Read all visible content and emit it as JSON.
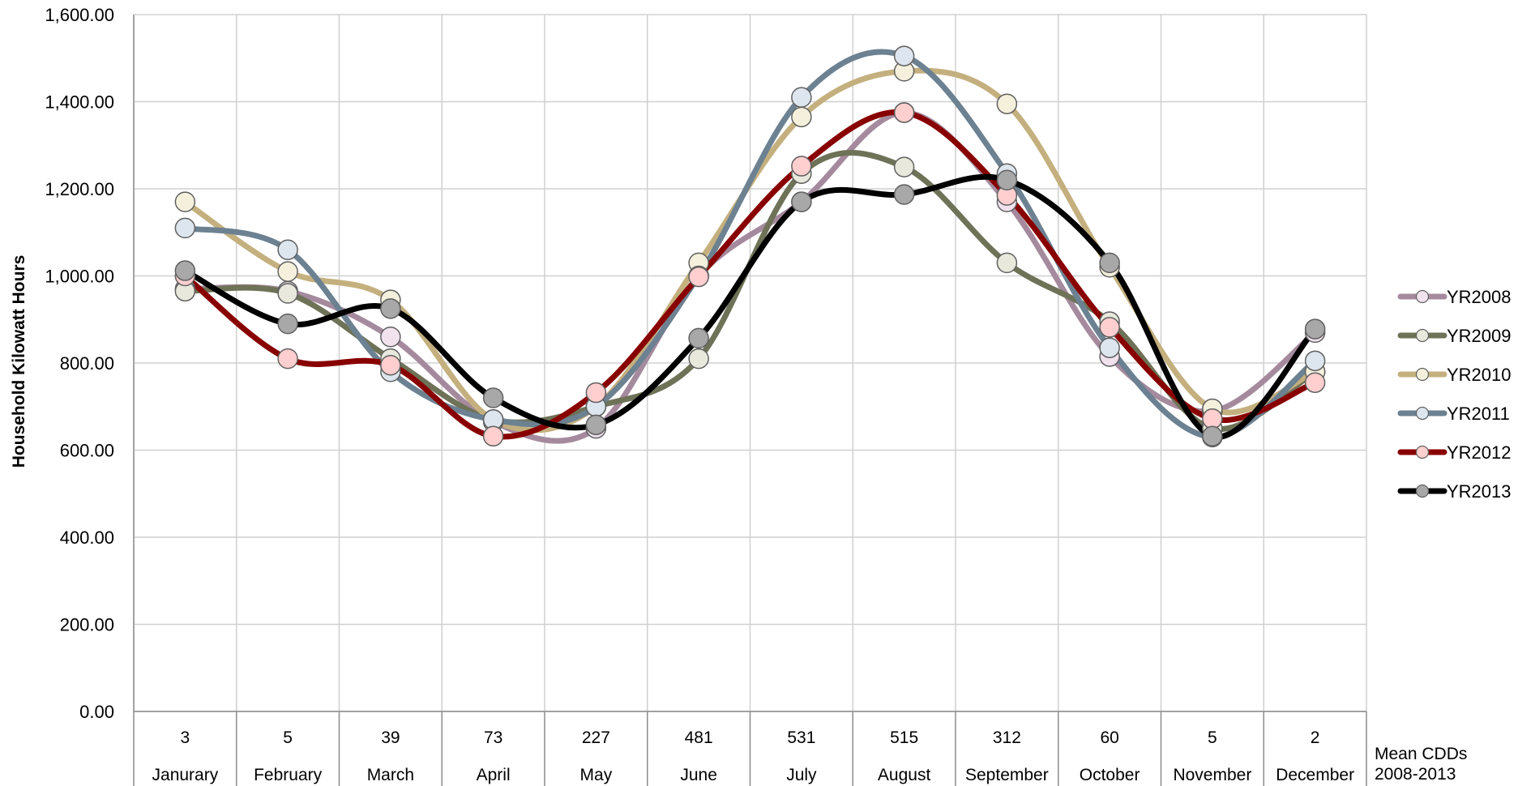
{
  "chart_data": {
    "type": "line",
    "title": "",
    "xlabel": "",
    "ylabel": "Household Kilowatt Hours",
    "ylim": [
      0,
      1600
    ],
    "yticks": [
      "0.00",
      "200.00",
      "400.00",
      "600.00",
      "800.00",
      "1,000.00",
      "1,200.00",
      "1,400.00",
      "1,600.00"
    ],
    "categories": [
      "Janurary",
      "February",
      "March",
      "April",
      "May",
      "June",
      "July",
      "August",
      "September",
      "October",
      "November",
      "December"
    ],
    "cdd_values": [
      "3",
      "5",
      "39",
      "73",
      "227",
      "481",
      "531",
      "515",
      "312",
      "60",
      "5",
      "2"
    ],
    "cdd_row_label": [
      "Mean CDDs",
      "2008-2013"
    ],
    "grid": true,
    "smooth": true,
    "legend_position": "right",
    "series": [
      {
        "name": "YR2008",
        "color": "#a58a9e",
        "marker": "#f1e2ee",
        "values": [
          970,
          965,
          860,
          665,
          650,
          1000,
          1170,
          1375,
          1170,
          815,
          690,
          870
        ]
      },
      {
        "name": "YR2009",
        "color": "#6e7257",
        "marker": "#e8e9dc",
        "values": [
          965,
          960,
          810,
          670,
          700,
          810,
          1235,
          1250,
          1030,
          895,
          650,
          780
        ]
      },
      {
        "name": "YR2010",
        "color": "#c4b07e",
        "marker": "#f5f0dc",
        "values": [
          1170,
          1010,
          945,
          670,
          700,
          1030,
          1365,
          1470,
          1395,
          1020,
          695,
          780
        ]
      },
      {
        "name": "YR2011",
        "color": "#6c8191",
        "marker": "#dde6ee",
        "values": [
          1110,
          1060,
          780,
          670,
          700,
          1000,
          1410,
          1505,
          1235,
          835,
          630,
          805
        ]
      },
      {
        "name": "YR2012",
        "color": "#880000",
        "marker": "#ffcfcf",
        "values": [
          1000,
          810,
          795,
          632,
          732,
          998,
          1252,
          1375,
          1185,
          882,
          672,
          755
        ]
      },
      {
        "name": "YR2013",
        "color": "#000000",
        "marker": "#a8a8a8",
        "values": [
          1012,
          890,
          925,
          720,
          658,
          857,
          1170,
          1187,
          1220,
          1030,
          632,
          878
        ]
      }
    ]
  }
}
